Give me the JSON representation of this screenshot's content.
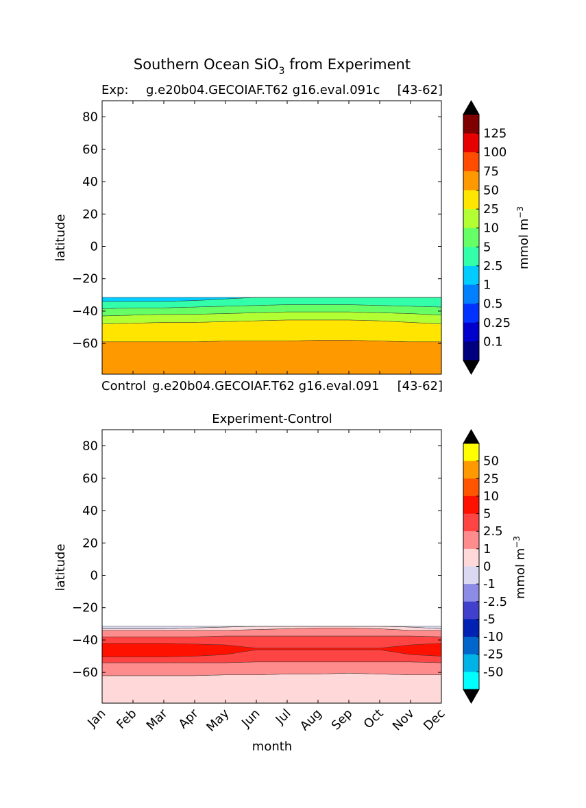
{
  "figure": {
    "title_main": "Southern Ocean SiO",
    "title_sub": "3",
    "title_tail": " from Experiment"
  },
  "chart_data": [
    {
      "type": "heatmap",
      "subtitle_left": "Exp:",
      "subtitle_center": "g.e20b04.GECOIAF.T62 g16.eval.091c",
      "subtitle_right": "[43-62]",
      "footer_left": "Control",
      "footer_center": "g.e20b04.GECOIAF.T62 g16.eval.091",
      "footer_right": "[43-62]",
      "ylabel": "latitude",
      "xlabel": "",
      "xlim": [
        0,
        11
      ],
      "ylim": [
        -79,
        90
      ],
      "yticks": [
        80,
        60,
        40,
        20,
        0,
        -20,
        -40,
        -60
      ],
      "ytick_labels": [
        "80",
        "60",
        "40",
        "20",
        "0",
        "−20",
        "−40",
        "−60"
      ],
      "data_lat_range": [
        -79,
        -31.5
      ],
      "grid": false,
      "colorbar": {
        "label": "mmol m",
        "label_sup": "−3",
        "levels": [
          "125",
          "100",
          "75",
          "50",
          "25",
          "10",
          "5",
          "2.5",
          "1",
          "0.5",
          "0.25",
          "0.1"
        ],
        "colors": [
          "#7f0000",
          "#e60000",
          "#ff4c00",
          "#ff9900",
          "#ffe500",
          "#b2ff33",
          "#66ff66",
          "#33ffaa",
          "#00ccff",
          "#0080ff",
          "#0033ff",
          "#0000cc",
          "#00007f"
        ],
        "over_color": "#000000",
        "under_color": "#000000"
      },
      "bands": [
        {
          "color": "#ff9900",
          "lower": [
            -79,
            -79,
            -79,
            -79,
            -79,
            -79,
            -79,
            -79,
            -79,
            -79,
            -79,
            -79
          ],
          "upper": [
            -59,
            -59,
            -59,
            -59,
            -58.5,
            -58.5,
            -58.5,
            -58,
            -58,
            -58.5,
            -59,
            -59
          ]
        },
        {
          "color": "#ffe500",
          "lower": [
            -59,
            -59,
            -59,
            -59,
            -58.5,
            -58.5,
            -58.5,
            -58,
            -58,
            -58.5,
            -59,
            -59
          ],
          "upper": [
            -48,
            -47.5,
            -47,
            -47,
            -46.5,
            -46,
            -45.5,
            -45.5,
            -45.5,
            -46,
            -47,
            -48
          ]
        },
        {
          "color": "#b2ff33",
          "lower": [
            -48,
            -47.5,
            -47,
            -47,
            -46.5,
            -46,
            -45.5,
            -45.5,
            -45.5,
            -46,
            -47,
            -48
          ],
          "upper": [
            -43,
            -42.5,
            -42,
            -42,
            -41.5,
            -41,
            -40.5,
            -40.5,
            -40.5,
            -41,
            -41.5,
            -42.5
          ]
        },
        {
          "color": "#66ff66",
          "lower": [
            -43,
            -42.5,
            -42,
            -42,
            -41.5,
            -41,
            -40.5,
            -40.5,
            -40.5,
            -41,
            -41.5,
            -42.5
          ],
          "upper": [
            -38.5,
            -38,
            -38,
            -37.5,
            -37,
            -36.5,
            -36,
            -36,
            -36,
            -36.5,
            -37,
            -37.5
          ]
        },
        {
          "color": "#33ffaa",
          "lower": [
            -38.5,
            -38,
            -38,
            -37.5,
            -37,
            -36.5,
            -36,
            -36,
            -36,
            -36.5,
            -37,
            -37.5
          ],
          "upper": [
            -34,
            -34,
            -34,
            -33.5,
            -32.5,
            -31.5,
            -31.5,
            -31.5,
            -31.5,
            -31.5,
            -31.5,
            -31.5
          ]
        },
        {
          "color": "#00ccff",
          "lower": [
            -34,
            -34,
            -34,
            -33.5,
            -32.5,
            -31.5,
            -31.5,
            -31.5,
            -31.5,
            -31.5,
            -31.5,
            -31.5
          ],
          "upper": [
            -31.5,
            -31.5,
            -31.5,
            -31.5,
            -31.5,
            -31.5,
            -31.5,
            -31.5,
            -31.5,
            -31.5,
            -31.5,
            -31.5
          ]
        }
      ]
    },
    {
      "type": "heatmap",
      "subtitle_center": "Experiment-Control",
      "ylabel": "latitude",
      "xlabel": "month",
      "categories": [
        "Jan",
        "Feb",
        "Mar",
        "Apr",
        "May",
        "Jun",
        "Jul",
        "Aug",
        "Sep",
        "Oct",
        "Nov",
        "Dec"
      ],
      "xlim": [
        0,
        11
      ],
      "ylim": [
        -79,
        90
      ],
      "yticks": [
        80,
        60,
        40,
        20,
        0,
        -20,
        -40,
        -60
      ],
      "ytick_labels": [
        "80",
        "60",
        "40",
        "20",
        "0",
        "−20",
        "−40",
        "−60"
      ],
      "data_lat_range": [
        -79,
        -31.5
      ],
      "grid": false,
      "colorbar": {
        "label": "mmol m",
        "label_sup": "−3",
        "levels": [
          "50",
          "25",
          "10",
          "5",
          "2.5",
          "1",
          "0",
          "-1",
          "-2.5",
          "-5",
          "-10",
          "-25",
          "-50"
        ],
        "colors": [
          "#ffff00",
          "#ff9900",
          "#ff5500",
          "#ff1100",
          "#ff4444",
          "#ff8c8c",
          "#ffd9d9",
          "#d9d9f2",
          "#8c8ce6",
          "#4040cc",
          "#0022b3",
          "#0066cc",
          "#00b3e6",
          "#00ffff"
        ],
        "over_color": "#000000",
        "under_color": "#000000"
      },
      "bands": [
        {
          "color": "#ffd9d9",
          "lower": [
            -79,
            -79,
            -79,
            -79,
            -79,
            -79,
            -79,
            -79,
            -79,
            -79,
            -79,
            -79
          ],
          "upper": [
            -62,
            -62,
            -62,
            -62,
            -61.5,
            -61.5,
            -61,
            -61,
            -60.5,
            -61,
            -61.5,
            -61.5
          ]
        },
        {
          "color": "#ff8c8c",
          "lower": [
            -62,
            -62,
            -62,
            -62,
            -61.5,
            -61.5,
            -61,
            -61,
            -60.5,
            -61,
            -61.5,
            -61.5
          ],
          "upper": [
            -54,
            -54,
            -54,
            -54,
            -54,
            -53.5,
            -53.5,
            -53.5,
            -53.5,
            -53.5,
            -53.5,
            -54
          ]
        },
        {
          "color": "#ff4444",
          "lower": [
            -54,
            -54,
            -54,
            -54,
            -54,
            -53.5,
            -53.5,
            -53.5,
            -53.5,
            -53.5,
            -53.5,
            -54
          ],
          "upper": [
            -38,
            -38,
            -38,
            -38,
            -37.5,
            -37.5,
            -37.5,
            -37.5,
            -37.5,
            -37.5,
            -37.5,
            -38
          ]
        },
        {
          "color": "#ff8c8c",
          "lower": [
            -38,
            -38,
            -38,
            -38,
            -37.5,
            -37.5,
            -37.5,
            -37.5,
            -37.5,
            -37.5,
            -37.5,
            -38
          ],
          "upper": [
            -34,
            -34,
            -34,
            -34,
            -34,
            -33.5,
            -33,
            -32.5,
            -32.5,
            -33,
            -34,
            -34
          ]
        },
        {
          "color": "#ffd9d9",
          "lower": [
            -34,
            -34,
            -34,
            -34,
            -34,
            -33.5,
            -33,
            -32.5,
            -32.5,
            -33,
            -34,
            -34
          ],
          "upper": [
            -33,
            -33,
            -33,
            -32.5,
            -32,
            -31.5,
            -31.5,
            -31.5,
            -31.5,
            -31.5,
            -32,
            -33
          ]
        },
        {
          "color": "#d9d9f2",
          "lower": [
            -33,
            -33,
            -33,
            -32.5,
            -32,
            -31.5,
            -31.5,
            -31.5,
            -31.5,
            -31.5,
            -32,
            -33
          ],
          "upper": [
            -31.5,
            -31.5,
            -31.5,
            -31.5,
            -31.5,
            -31.5,
            -31.5,
            -31.5,
            -31.5,
            -31.5,
            -31.5,
            -31.5
          ]
        },
        {
          "color": "#ff1100",
          "lower": [
            -50.5,
            -50.5,
            -50.5,
            -50,
            -49,
            -46,
            -46,
            -46,
            -46,
            -46,
            -49,
            -50
          ],
          "upper": [
            -42,
            -42,
            -42,
            -42.5,
            -43,
            -45,
            -45,
            -45,
            -45,
            -45,
            -43,
            -42
          ]
        }
      ]
    }
  ]
}
